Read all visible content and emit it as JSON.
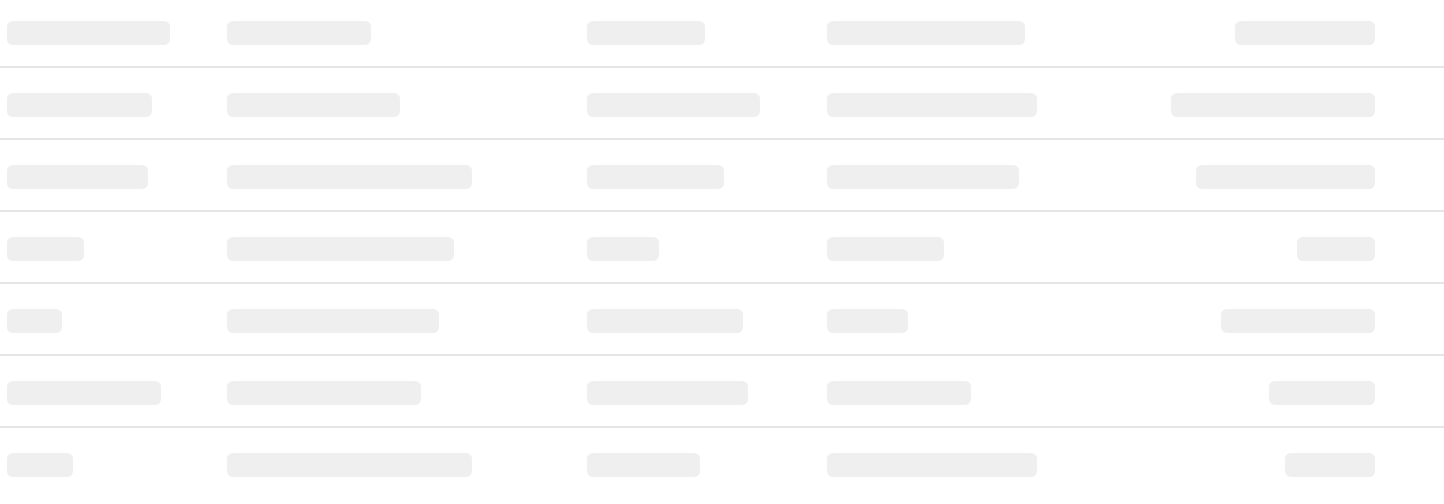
{
  "skeleton_table": {
    "state": "loading",
    "row_count": 7,
    "column_count": 5,
    "colors": {
      "placeholder": "#efefef",
      "divider": "#e6e6e6",
      "background": "#ffffff"
    }
  }
}
